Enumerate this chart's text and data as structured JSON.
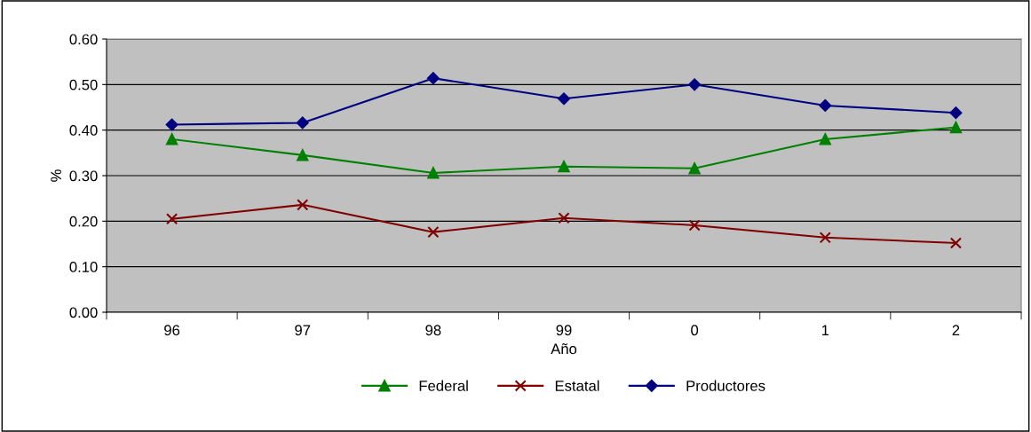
{
  "chart_data": {
    "type": "line",
    "xlabel": "Año",
    "ylabel": "%",
    "categories": [
      "96",
      "97",
      "98",
      "99",
      "0",
      "1",
      "2"
    ],
    "series": [
      {
        "name": "Federal",
        "color": "#008000",
        "marker": "triangle",
        "values": [
          0.38,
          0.345,
          0.306,
          0.32,
          0.316,
          0.38,
          0.406
        ]
      },
      {
        "name": "Estatal",
        "color": "#800000",
        "marker": "cross",
        "values": [
          0.205,
          0.236,
          0.176,
          0.207,
          0.191,
          0.164,
          0.152
        ]
      },
      {
        "name": "Productores",
        "color": "#000080",
        "marker": "diamond",
        "values": [
          0.412,
          0.416,
          0.514,
          0.469,
          0.5,
          0.454,
          0.438
        ]
      }
    ],
    "ylim": [
      0,
      0.6
    ],
    "yticks": [
      {
        "value": 0,
        "label": "0.00"
      },
      {
        "value": 0.1,
        "label": "0.10"
      },
      {
        "value": 0.2,
        "label": "0.20"
      },
      {
        "value": 0.3,
        "label": "0.30"
      },
      {
        "value": 0.4,
        "label": "0.40"
      },
      {
        "value": 0.5,
        "label": "0.50"
      },
      {
        "value": 0.6,
        "label": "0.60"
      }
    ],
    "grid": "y",
    "legend": "bottom"
  }
}
